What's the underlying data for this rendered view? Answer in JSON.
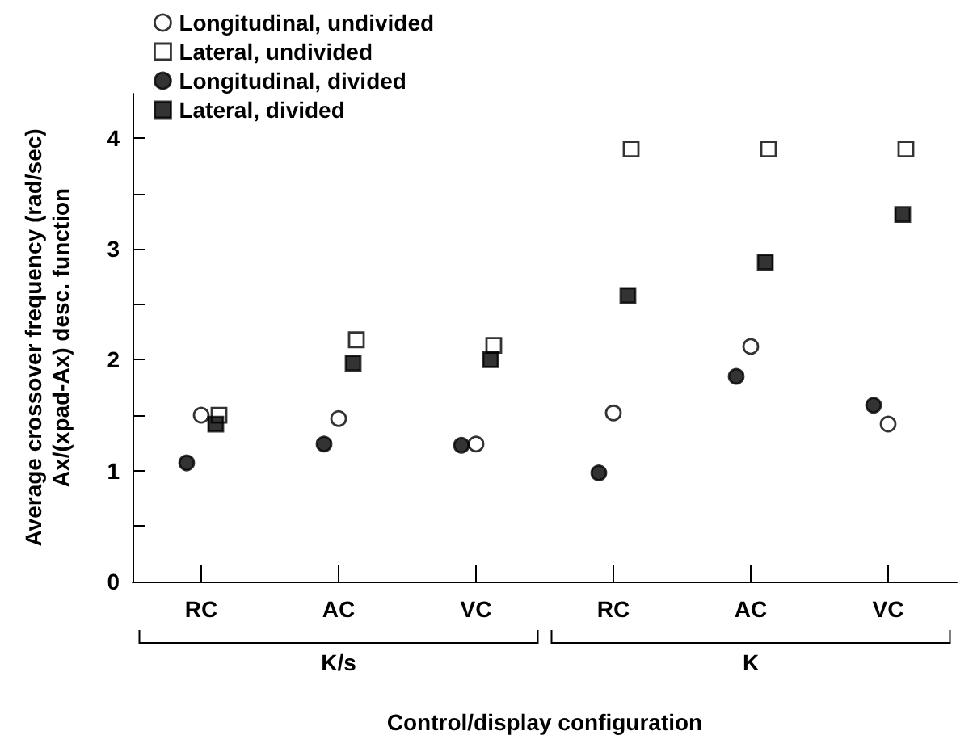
{
  "chart_data": {
    "type": "scatter",
    "ylabel": "Average crossover frequency (rad/sec)\nAx/(xpad-Ax) desc. function",
    "xlabel": "Control/display configuration",
    "categories": [
      "RC",
      "AC",
      "VC",
      "RC",
      "AC",
      "VC"
    ],
    "annotations": [
      "K/s",
      "K"
    ],
    "series": [
      {
        "name": "Longitudinal, undivided",
        "color": "#ffffff",
        "marker": "circle",
        "values": [
          1.5,
          1.47,
          1.24,
          1.52,
          2.12,
          1.42
        ]
      },
      {
        "name": "Lateral, undivided",
        "color": "#ffffff",
        "marker": "square",
        "values": [
          1.5,
          2.18,
          2.13,
          3.9,
          3.9,
          3.9
        ]
      },
      {
        "name": "Longitudinal, divided",
        "color": "#000000",
        "marker": "circle",
        "values": [
          1.07,
          1.24,
          1.23,
          0.98,
          1.85,
          1.59
        ]
      },
      {
        "name": "Lateral, divided",
        "color": "#000000",
        "marker": "square",
        "values": [
          1.42,
          1.97,
          2.0,
          2.58,
          2.88,
          3.31
        ]
      }
    ],
    "ylim": [
      0,
      4.4
    ],
    "yticks": [
      0,
      {
        "value": 0.5,
        "label": null
      },
      1,
      {
        "value": 1.5,
        "label": null
      },
      2,
      {
        "value": 2.5,
        "label": null
      },
      3,
      {
        "value": 3.5,
        "label": null
      },
      4
    ],
    "grid": false,
    "legend": "top left"
  }
}
